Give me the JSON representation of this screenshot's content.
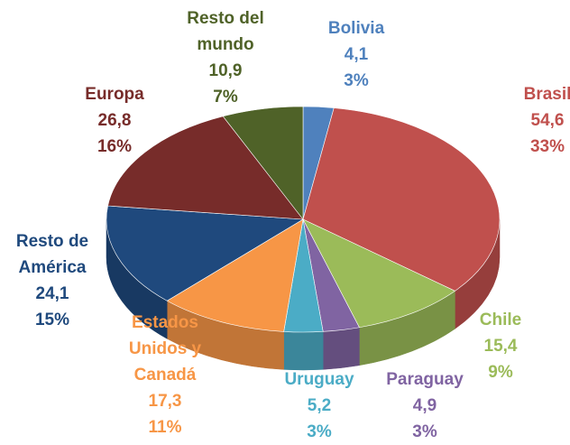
{
  "chart_data": {
    "type": "pie3d",
    "categories": [
      "Bolivia",
      "Brasil",
      "Chile",
      "Paraguay",
      "Uruguay",
      "Estados Unidos y Canadá",
      "Resto de América",
      "Europa",
      "Resto del mundo"
    ],
    "values": [
      4.1,
      54.6,
      15.4,
      4.9,
      5.2,
      17.3,
      24.1,
      26.8,
      10.9
    ],
    "value_labels": [
      "4,1",
      "54,6",
      "15,4",
      "4,9",
      "5,2",
      "17,3",
      "24,1",
      "26,8",
      "10,9"
    ],
    "shares": [
      3,
      33,
      9,
      3,
      3,
      11,
      15,
      16,
      7
    ],
    "share_labels": [
      "3%",
      "33%",
      "9%",
      "3%",
      "3%",
      "11%",
      "15%",
      "16%",
      "7%"
    ],
    "colors": [
      "#4f81bd",
      "#c0504d",
      "#9bbb59",
      "#8064a2",
      "#4bacc6",
      "#f79646",
      "#1f497d",
      "#772c2a",
      "#4f6228"
    ]
  }
}
